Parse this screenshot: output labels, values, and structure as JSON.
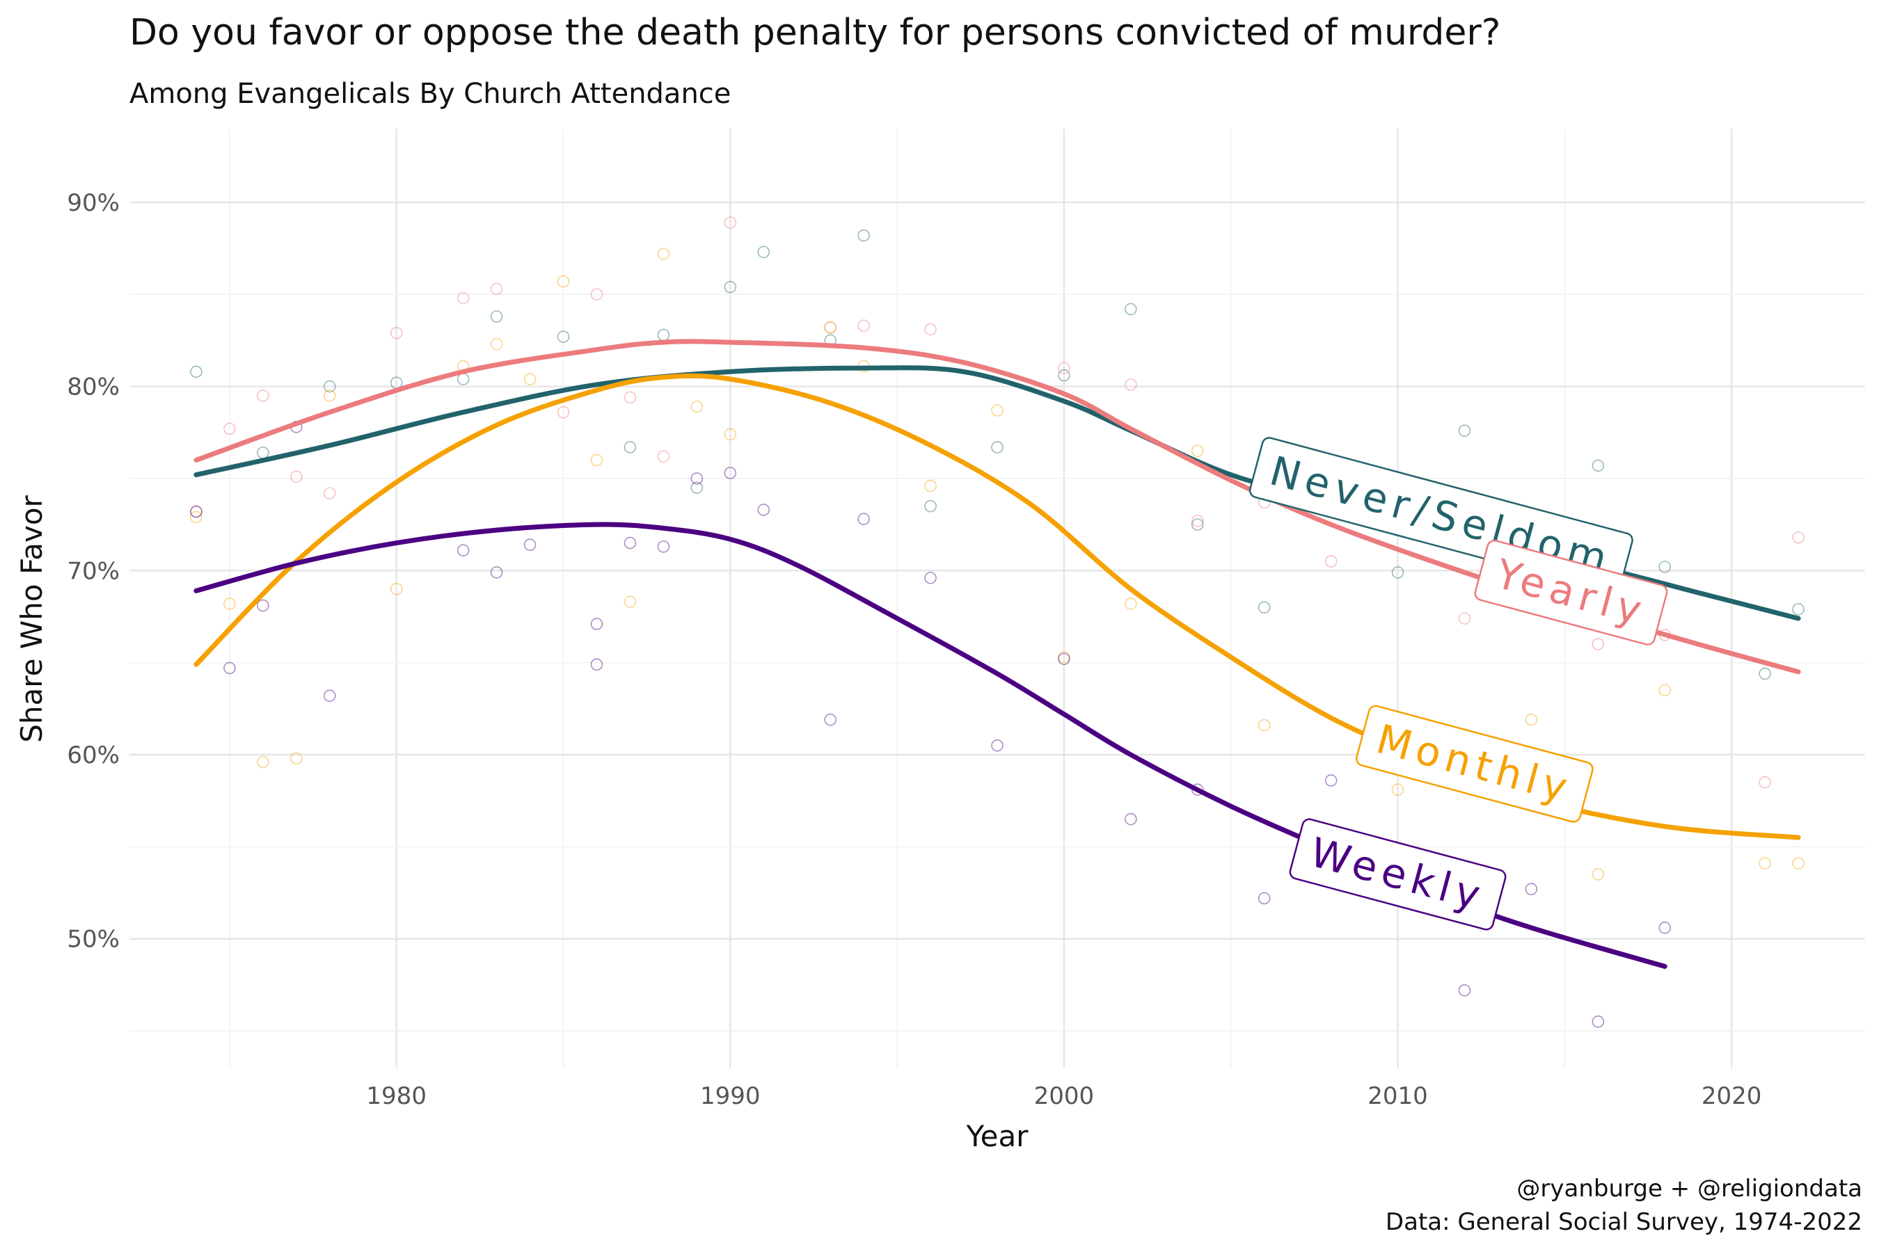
{
  "chart_data": {
    "type": "line",
    "title": "Do you favor or oppose the death penalty for persons convicted of murder?",
    "subtitle": "Among Evangelicals By Church Attendance",
    "xlabel": "Year",
    "ylabel": "Share Who Favor",
    "xlim": [
      1972,
      2024
    ],
    "ylim": [
      43,
      94
    ],
    "x_ticks": [
      1980,
      1990,
      2000,
      2010,
      2020
    ],
    "x_tick_labels": [
      "1980",
      "1990",
      "2000",
      "2010",
      "2020"
    ],
    "y_ticks": [
      50,
      60,
      70,
      80,
      90
    ],
    "y_tick_labels": [
      "50%",
      "60%",
      "70%",
      "80%",
      "90%"
    ],
    "caption_line1": "@ryanburge + @religiondata",
    "caption_line2": "Data: General Social Survey, 1974-2022",
    "series": [
      {
        "name": "Never/Seldom",
        "color": "#22636b",
        "smooth_x": [
          1974,
          1978,
          1982,
          1986,
          1990,
          1994,
          1997,
          2000,
          2002,
          2005,
          2008,
          2012,
          2016,
          2019,
          2022
        ],
        "smooth_y": [
          75.2,
          76.8,
          78.6,
          80.1,
          80.8,
          81.0,
          80.8,
          79.2,
          77.6,
          75.2,
          73.8,
          71.9,
          70.2,
          68.8,
          67.4
        ],
        "points_x": [
          1974,
          1976,
          1978,
          1980,
          1982,
          1983,
          1985,
          1987,
          1988,
          1989,
          1990,
          1991,
          1993,
          1994,
          1996,
          1998,
          2000,
          2002,
          2004,
          2006,
          2010,
          2012,
          2014,
          2016,
          2018,
          2021,
          2022
        ],
        "points_y": [
          80.8,
          76.4,
          80.0,
          80.2,
          80.4,
          83.8,
          82.7,
          76.7,
          82.8,
          74.5,
          85.4,
          87.3,
          82.5,
          88.2,
          73.5,
          76.7,
          80.6,
          84.2,
          72.5,
          68.0,
          69.9,
          77.6,
          71.0,
          75.7,
          70.2,
          64.4,
          67.9
        ]
      },
      {
        "name": "Yearly",
        "color": "#ec7b7e",
        "smooth_x": [
          1974,
          1978,
          1982,
          1986,
          1988,
          1990,
          1994,
          1997,
          2000,
          2002,
          2005,
          2008,
          2012,
          2016,
          2019,
          2022
        ],
        "smooth_y": [
          76.0,
          78.6,
          80.8,
          82.0,
          82.4,
          82.4,
          82.1,
          81.3,
          79.6,
          77.7,
          74.9,
          72.5,
          69.9,
          67.6,
          66.0,
          64.5
        ],
        "points_x": [
          1974,
          1975,
          1976,
          1977,
          1978,
          1980,
          1982,
          1983,
          1985,
          1986,
          1987,
          1988,
          1990,
          1993,
          1994,
          1996,
          2000,
          2002,
          2004,
          2006,
          2008,
          2012,
          2016,
          2018,
          2021,
          2022
        ],
        "points_y": [
          73.2,
          77.7,
          79.5,
          75.1,
          74.2,
          82.9,
          84.8,
          85.3,
          78.6,
          85.0,
          79.4,
          76.2,
          88.9,
          83.2,
          83.3,
          83.1,
          81.0,
          80.1,
          72.7,
          73.7,
          70.5,
          67.4,
          66.0,
          66.5,
          58.5,
          71.8
        ]
      },
      {
        "name": "Monthly",
        "color": "#f5a100",
        "smooth_x": [
          1974,
          1977,
          1980,
          1983,
          1986,
          1988,
          1990,
          1993,
          1996,
          1999,
          2002,
          2005,
          2008,
          2011,
          2014,
          2018,
          2022
        ],
        "smooth_y": [
          64.9,
          70.5,
          74.8,
          77.9,
          79.8,
          80.5,
          80.4,
          79.1,
          76.8,
          73.6,
          69.0,
          65.3,
          62.0,
          59.6,
          57.6,
          56.1,
          55.5
        ],
        "points_x": [
          1974,
          1975,
          1976,
          1977,
          1978,
          1980,
          1982,
          1983,
          1984,
          1985,
          1986,
          1987,
          1988,
          1989,
          1990,
          1993,
          1994,
          1996,
          1998,
          2000,
          2002,
          2004,
          2006,
          2010,
          2012,
          2014,
          2016,
          2018,
          2021,
          2022
        ],
        "points_y": [
          72.9,
          68.2,
          59.6,
          59.8,
          79.5,
          69.0,
          81.1,
          82.3,
          80.4,
          85.7,
          76.0,
          68.3,
          87.2,
          78.9,
          77.4,
          83.2,
          81.1,
          74.6,
          78.7,
          65.3,
          68.2,
          76.5,
          61.6,
          58.1,
          60.7,
          61.9,
          53.5,
          63.5,
          54.1,
          54.1
        ]
      },
      {
        "name": "Weekly",
        "color": "#4b0082",
        "smooth_x": [
          1974,
          1977,
          1980,
          1983,
          1986,
          1988,
          1990,
          1992,
          1995,
          1998,
          2000,
          2002,
          2005,
          2008,
          2011,
          2014,
          2018
        ],
        "smooth_y": [
          68.9,
          70.4,
          71.5,
          72.2,
          72.5,
          72.3,
          71.7,
          70.3,
          67.4,
          64.4,
          62.2,
          60.0,
          57.2,
          54.8,
          52.5,
          50.6,
          48.5
        ],
        "points_x": [
          1974,
          1975,
          1976,
          1977,
          1978,
          1982,
          1983,
          1984,
          1986,
          1986,
          1987,
          1988,
          1989,
          1990,
          1991,
          1993,
          1994,
          1996,
          1998,
          2000,
          2002,
          2004,
          2006,
          2008,
          2012,
          2014,
          2016,
          2018
        ],
        "points_y": [
          73.2,
          64.7,
          68.1,
          77.8,
          63.2,
          71.1,
          69.9,
          71.4,
          67.1,
          64.9,
          71.5,
          71.3,
          75.0,
          75.3,
          73.3,
          61.9,
          72.8,
          69.6,
          60.5,
          65.2,
          56.5,
          58.1,
          52.2,
          58.6,
          47.2,
          52.7,
          45.5,
          50.6
        ]
      }
    ],
    "direct_labels": [
      {
        "text": "Never/Seldom",
        "series": "Never/Seldom",
        "x": 2011.3,
        "y": 73.0,
        "angle": 15
      },
      {
        "text": "Yearly",
        "series": "Yearly",
        "x": 2015.2,
        "y": 68.8,
        "angle": 15
      },
      {
        "text": "Monthly",
        "series": "Monthly",
        "x": 2012.3,
        "y": 59.5,
        "angle": 15
      },
      {
        "text": "Weekly",
        "series": "Weekly",
        "x": 2010.0,
        "y": 53.5,
        "angle": 15
      }
    ]
  }
}
